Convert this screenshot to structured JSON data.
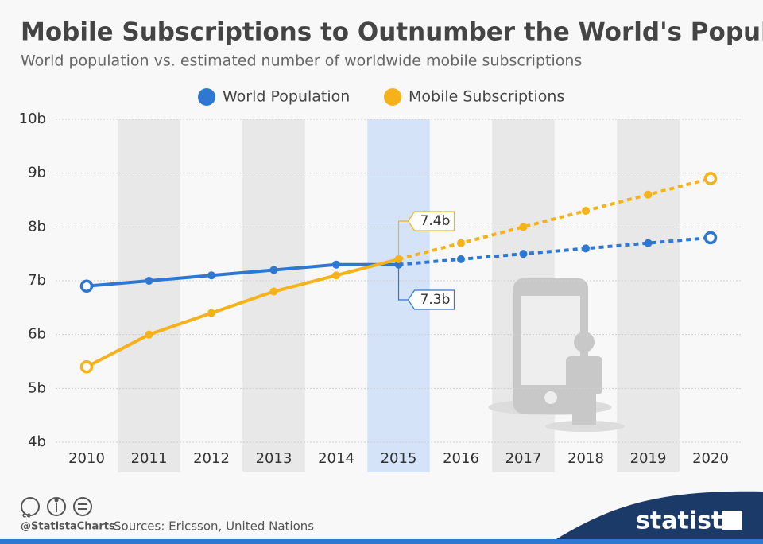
{
  "chart_data": {
    "type": "line",
    "title": "Mobile Subscriptions to Outnumber the World's Population",
    "subtitle": "World population vs. estimated number of worldwide mobile subscriptions",
    "categories": [
      "2010",
      "2011",
      "2012",
      "2013",
      "2014",
      "2015",
      "2016",
      "2017",
      "2018",
      "2019",
      "2020"
    ],
    "series": [
      {
        "name": "World Population",
        "color": "#2e78d2",
        "values": [
          6.9,
          7.0,
          7.1,
          7.2,
          7.3,
          7.3,
          7.4,
          7.5,
          7.6,
          7.7,
          7.8
        ],
        "value_labels": [
          null,
          null,
          null,
          null,
          null,
          "7.3b",
          null,
          null,
          null,
          null,
          null
        ]
      },
      {
        "name": "Mobile Subscriptions",
        "color": "#f5b21b",
        "values": [
          5.4,
          6.0,
          6.4,
          6.8,
          7.1,
          7.4,
          7.7,
          8.0,
          8.3,
          8.6,
          8.9
        ],
        "value_labels": [
          null,
          null,
          null,
          null,
          null,
          "7.4b",
          null,
          null,
          null,
          null,
          null
        ]
      }
    ],
    "ylim": [
      4,
      10
    ],
    "yticks": [
      {
        "value": 4,
        "label": "4b"
      },
      {
        "value": 5,
        "label": "5b"
      },
      {
        "value": 6,
        "label": "6b"
      },
      {
        "value": 7,
        "label": "7b"
      },
      {
        "value": 8,
        "label": "8b"
      },
      {
        "value": 9,
        "label": "9b"
      },
      {
        "value": 10,
        "label": "10b"
      }
    ],
    "grid": true,
    "legend": "top",
    "projected_from": "2015",
    "highlight_category": "2015"
  },
  "footer": {
    "handle": "@StatistaCharts",
    "source": "Sources: Ericsson, United Nations",
    "brand": "statista"
  }
}
